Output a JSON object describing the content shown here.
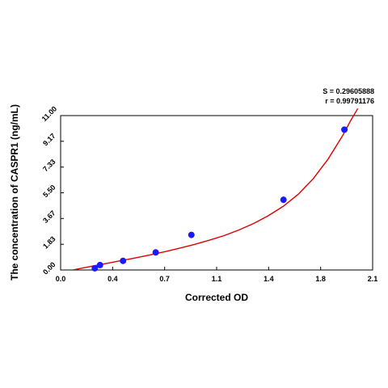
{
  "chart_data": {
    "type": "scatter",
    "xlabel": "Corrected OD",
    "ylabel": "The concentration of CASPR1 (ng/mL)",
    "xlim": [
      0.0,
      2.1
    ],
    "ylim": [
      0.0,
      11.0
    ],
    "x_ticks": [
      "0.0",
      "0.4",
      "0.7",
      "1.1",
      "1.4",
      "1.8",
      "2.1"
    ],
    "x_tick_values": [
      0.0,
      0.35,
      0.7,
      1.05,
      1.4,
      1.75,
      2.1
    ],
    "y_ticks": [
      "0.00",
      "1.83",
      "3.67",
      "5.50",
      "7.33",
      "9.17",
      "11.00"
    ],
    "y_tick_values": [
      0.0,
      1.83,
      3.67,
      5.5,
      7.33,
      9.17,
      11.0
    ],
    "points": [
      {
        "x": 0.23,
        "y": 0.12
      },
      {
        "x": 0.265,
        "y": 0.35
      },
      {
        "x": 0.42,
        "y": 0.65
      },
      {
        "x": 0.64,
        "y": 1.25
      },
      {
        "x": 0.88,
        "y": 2.5
      },
      {
        "x": 1.5,
        "y": 5.0
      },
      {
        "x": 1.91,
        "y": 10.0
      }
    ],
    "fit_curve": {
      "x": [
        0.08,
        0.2,
        0.3,
        0.4,
        0.5,
        0.6,
        0.7,
        0.8,
        0.9,
        1.0,
        1.1,
        1.2,
        1.3,
        1.4,
        1.5,
        1.6,
        1.7,
        1.8,
        1.9,
        1.95,
        2.0
      ],
      "y": [
        0.0,
        0.25,
        0.45,
        0.65,
        0.85,
        1.07,
        1.3,
        1.55,
        1.82,
        2.12,
        2.45,
        2.85,
        3.32,
        3.88,
        4.55,
        5.4,
        6.5,
        7.9,
        9.6,
        10.6,
        11.5
      ]
    },
    "stats": {
      "s": "S = 0.29605888",
      "r": "r = 0.99791176"
    },
    "colors": {
      "points": "#1a1aff",
      "curve": "#e00000",
      "axes": "#000000"
    },
    "grid": false
  }
}
